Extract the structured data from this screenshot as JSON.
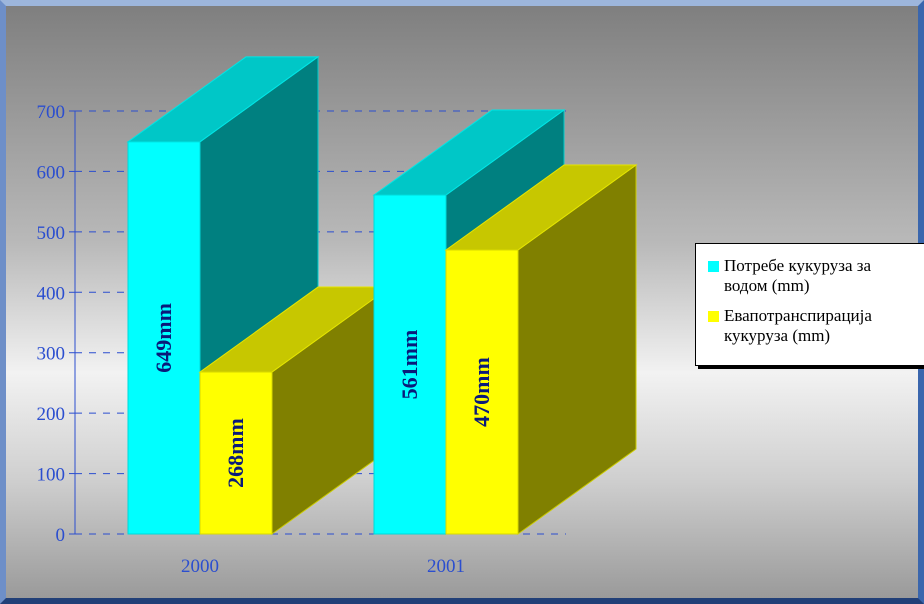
{
  "chart_data": {
    "type": "bar",
    "categories": [
      "2000",
      "2001"
    ],
    "series": [
      {
        "name": "Потребе кукуруза за водом (mm)",
        "values": [
          649,
          561
        ],
        "labels": [
          "649mm",
          "561mm"
        ],
        "color": "#00ffff"
      },
      {
        "name": "Евапотранспирација кукуруза (mm)",
        "values": [
          268,
          470
        ],
        "labels": [
          "268mm",
          "470mm"
        ],
        "color": "#ffff00"
      }
    ],
    "ylim": [
      0,
      700
    ],
    "yticks": [
      0,
      100,
      200,
      300,
      400,
      500,
      600,
      700
    ],
    "grid": true,
    "legend": "right",
    "title": "",
    "xlabel": "",
    "ylabel": ""
  },
  "legend": {
    "items": [
      {
        "line1": "Потребе кукуруза за",
        "line2": "водом (mm)"
      },
      {
        "line1": "Евапотранспирација",
        "line2": "кукуруза (mm)"
      }
    ]
  },
  "colors": {
    "axis_text": "#2b4ecf",
    "grid": "#2b4ecf",
    "bar_label": "#0a1a7a"
  }
}
